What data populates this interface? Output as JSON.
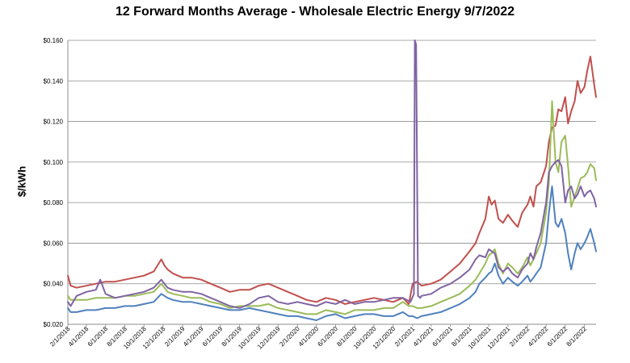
{
  "chart_data": {
    "type": "line",
    "title": "12 Forward Months Average - Wholesale Electric Energy 9/7/2022",
    "xlabel": "",
    "ylabel": "$/kWh",
    "ylim": [
      0.02,
      0.16
    ],
    "yticks": [
      "$0.020",
      "$0.040",
      "$0.060",
      "$0.080",
      "$0.100",
      "$0.120",
      "$0.140",
      "$0.160"
    ],
    "xlim": [
      "2018-02-01",
      "2022-09-07"
    ],
    "xticks": [
      "2/1/2018",
      "4/1/2018",
      "6/1/2018",
      "8/1/2018",
      "10/1/2018",
      "12/1/2018",
      "2/1/2019",
      "4/1/2019",
      "6/1/2019",
      "8/1/2019",
      "10/1/2019",
      "12/1/2019",
      "2/1/2020",
      "4/1/2020",
      "6/1/2020",
      "8/1/2020",
      "10/1/2020",
      "12/1/2020",
      "2/1/2021",
      "4/1/2021",
      "6/1/2021",
      "8/1/2021",
      "10/1/2021",
      "12/1/2021",
      "2/1/2022",
      "4/1/2022",
      "6/1/2022",
      "8/1/2022"
    ],
    "grid": "horizontal",
    "legend": "none",
    "series": [
      {
        "color": "#c0504d",
        "x": [
          "2018-02-01",
          "2018-02-10",
          "2018-03-01",
          "2018-04-01",
          "2018-05-01",
          "2018-06-01",
          "2018-07-01",
          "2018-08-01",
          "2018-09-01",
          "2018-10-01",
          "2018-11-01",
          "2018-11-25",
          "2018-12-05",
          "2018-12-15",
          "2019-01-01",
          "2019-02-01",
          "2019-03-01",
          "2019-04-01",
          "2019-05-01",
          "2019-06-01",
          "2019-07-01",
          "2019-08-01",
          "2019-09-01",
          "2019-10-01",
          "2019-11-01",
          "2019-12-01",
          "2020-01-01",
          "2020-02-01",
          "2020-03-01",
          "2020-04-01",
          "2020-05-01",
          "2020-06-01",
          "2020-07-01",
          "2020-08-01",
          "2020-09-01",
          "2020-10-01",
          "2020-11-01",
          "2020-12-01",
          "2021-01-01",
          "2021-01-20",
          "2021-02-01",
          "2021-02-15",
          "2021-03-01",
          "2021-04-01",
          "2021-05-01",
          "2021-06-01",
          "2021-07-01",
          "2021-08-01",
          "2021-08-20",
          "2021-09-01",
          "2021-09-20",
          "2021-10-01",
          "2021-10-10",
          "2021-10-20",
          "2021-11-01",
          "2021-11-15",
          "2021-12-01",
          "2021-12-15",
          "2022-01-01",
          "2022-01-15",
          "2022-02-01",
          "2022-02-10",
          "2022-02-20",
          "2022-03-01",
          "2022-03-15",
          "2022-04-01",
          "2022-04-10",
          "2022-04-20",
          "2022-05-01",
          "2022-05-10",
          "2022-05-20",
          "2022-06-01",
          "2022-06-10",
          "2022-06-20",
          "2022-07-01",
          "2022-07-10",
          "2022-07-20",
          "2022-08-01",
          "2022-08-10",
          "2022-08-20",
          "2022-09-01",
          "2022-09-07"
        ],
        "values": [
          0.044,
          0.039,
          0.038,
          0.039,
          0.04,
          0.041,
          0.041,
          0.042,
          0.043,
          0.044,
          0.046,
          0.052,
          0.049,
          0.047,
          0.045,
          0.043,
          0.043,
          0.042,
          0.04,
          0.038,
          0.036,
          0.037,
          0.037,
          0.039,
          0.04,
          0.038,
          0.036,
          0.034,
          0.032,
          0.031,
          0.033,
          0.032,
          0.03,
          0.031,
          0.032,
          0.033,
          0.032,
          0.031,
          0.033,
          0.03,
          0.04,
          0.041,
          0.039,
          0.04,
          0.042,
          0.046,
          0.05,
          0.056,
          0.06,
          0.065,
          0.072,
          0.083,
          0.079,
          0.081,
          0.072,
          0.07,
          0.074,
          0.071,
          0.068,
          0.075,
          0.079,
          0.083,
          0.078,
          0.088,
          0.09,
          0.098,
          0.11,
          0.117,
          0.118,
          0.126,
          0.125,
          0.132,
          0.119,
          0.125,
          0.13,
          0.14,
          0.134,
          0.137,
          0.145,
          0.152,
          0.138,
          0.132
        ]
      },
      {
        "color": "#9bbb59",
        "x": [
          "2018-02-01",
          "2018-02-10",
          "2018-03-01",
          "2018-04-01",
          "2018-05-01",
          "2018-06-01",
          "2018-07-01",
          "2018-08-01",
          "2018-09-01",
          "2018-10-01",
          "2018-11-01",
          "2018-11-25",
          "2018-12-05",
          "2018-12-15",
          "2019-01-01",
          "2019-02-01",
          "2019-03-01",
          "2019-04-01",
          "2019-05-01",
          "2019-06-01",
          "2019-07-01",
          "2019-08-01",
          "2019-09-01",
          "2019-10-01",
          "2019-11-01",
          "2019-12-01",
          "2020-01-01",
          "2020-02-01",
          "2020-03-01",
          "2020-04-01",
          "2020-05-01",
          "2020-06-01",
          "2020-07-01",
          "2020-08-01",
          "2020-09-01",
          "2020-10-01",
          "2020-11-01",
          "2020-12-01",
          "2021-01-01",
          "2021-01-20",
          "2021-02-01",
          "2021-02-15",
          "2021-03-01",
          "2021-04-01",
          "2021-05-01",
          "2021-06-01",
          "2021-07-01",
          "2021-08-01",
          "2021-08-20",
          "2021-09-01",
          "2021-09-20",
          "2021-10-01",
          "2021-10-10",
          "2021-10-20",
          "2021-11-01",
          "2021-11-15",
          "2021-12-01",
          "2021-12-15",
          "2022-01-01",
          "2022-01-15",
          "2022-02-01",
          "2022-02-10",
          "2022-02-20",
          "2022-03-01",
          "2022-03-15",
          "2022-04-01",
          "2022-04-10",
          "2022-04-20",
          "2022-05-01",
          "2022-05-10",
          "2022-05-20",
          "2022-06-01",
          "2022-06-10",
          "2022-06-20",
          "2022-07-01",
          "2022-07-10",
          "2022-07-20",
          "2022-08-01",
          "2022-08-10",
          "2022-08-20",
          "2022-09-01",
          "2022-09-07"
        ],
        "values": [
          0.034,
          0.032,
          0.032,
          0.032,
          0.033,
          0.033,
          0.033,
          0.034,
          0.034,
          0.035,
          0.036,
          0.04,
          0.038,
          0.036,
          0.035,
          0.034,
          0.033,
          0.033,
          0.031,
          0.03,
          0.028,
          0.029,
          0.029,
          0.029,
          0.03,
          0.028,
          0.027,
          0.026,
          0.025,
          0.025,
          0.027,
          0.026,
          0.025,
          0.027,
          0.027,
          0.027,
          0.028,
          0.028,
          0.031,
          0.029,
          0.029,
          0.028,
          0.028,
          0.029,
          0.031,
          0.033,
          0.035,
          0.039,
          0.042,
          0.045,
          0.05,
          0.054,
          0.055,
          0.057,
          0.05,
          0.045,
          0.05,
          0.048,
          0.045,
          0.048,
          0.053,
          0.049,
          0.052,
          0.055,
          0.06,
          0.075,
          0.09,
          0.13,
          0.1,
          0.095,
          0.11,
          0.113,
          0.098,
          0.078,
          0.083,
          0.087,
          0.092,
          0.093,
          0.095,
          0.099,
          0.097,
          0.091
        ]
      },
      {
        "color": "#8064a2",
        "x": [
          "2018-02-01",
          "2018-02-10",
          "2018-03-01",
          "2018-04-01",
          "2018-05-01",
          "2018-05-15",
          "2018-06-01",
          "2018-07-01",
          "2018-08-01",
          "2018-09-01",
          "2018-10-01",
          "2018-11-01",
          "2018-11-25",
          "2018-12-05",
          "2018-12-15",
          "2019-01-01",
          "2019-02-01",
          "2019-03-01",
          "2019-04-01",
          "2019-05-01",
          "2019-06-01",
          "2019-07-01",
          "2019-08-01",
          "2019-09-01",
          "2019-10-01",
          "2019-11-01",
          "2019-12-01",
          "2020-01-01",
          "2020-02-01",
          "2020-03-01",
          "2020-04-01",
          "2020-05-01",
          "2020-06-01",
          "2020-07-01",
          "2020-08-01",
          "2020-09-01",
          "2020-10-01",
          "2020-11-01",
          "2020-12-01",
          "2021-01-01",
          "2021-01-25",
          "2021-02-05",
          "2021-02-08",
          "2021-02-12",
          "2021-02-18",
          "2021-02-25",
          "2021-03-01",
          "2021-04-01",
          "2021-05-01",
          "2021-06-01",
          "2021-07-01",
          "2021-08-01",
          "2021-08-20",
          "2021-09-01",
          "2021-09-20",
          "2021-10-01",
          "2021-10-10",
          "2021-10-20",
          "2021-11-01",
          "2021-11-15",
          "2021-12-01",
          "2021-12-15",
          "2022-01-01",
          "2022-01-15",
          "2022-02-01",
          "2022-02-10",
          "2022-02-20",
          "2022-03-01",
          "2022-03-15",
          "2022-04-01",
          "2022-04-10",
          "2022-04-20",
          "2022-05-01",
          "2022-05-10",
          "2022-05-20",
          "2022-06-01",
          "2022-06-10",
          "2022-06-20",
          "2022-07-01",
          "2022-07-10",
          "2022-07-20",
          "2022-08-01",
          "2022-08-10",
          "2022-08-20",
          "2022-09-01",
          "2022-09-07"
        ],
        "values": [
          0.031,
          0.029,
          0.034,
          0.036,
          0.037,
          0.042,
          0.035,
          0.033,
          0.034,
          0.035,
          0.036,
          0.038,
          0.042,
          0.04,
          0.038,
          0.037,
          0.036,
          0.036,
          0.035,
          0.033,
          0.031,
          0.029,
          0.028,
          0.03,
          0.033,
          0.034,
          0.031,
          0.03,
          0.031,
          0.03,
          0.029,
          0.031,
          0.03,
          0.032,
          0.03,
          0.031,
          0.031,
          0.032,
          0.033,
          0.033,
          0.031,
          0.035,
          0.16,
          0.158,
          0.034,
          0.033,
          0.034,
          0.035,
          0.038,
          0.04,
          0.043,
          0.047,
          0.052,
          0.054,
          0.053,
          0.057,
          0.056,
          0.055,
          0.048,
          0.046,
          0.048,
          0.045,
          0.043,
          0.047,
          0.05,
          0.055,
          0.052,
          0.058,
          0.065,
          0.08,
          0.095,
          0.098,
          0.1,
          0.101,
          0.098,
          0.08,
          0.086,
          0.088,
          0.082,
          0.084,
          0.088,
          0.083,
          0.085,
          0.086,
          0.082,
          0.078
        ]
      },
      {
        "color": "#4f81bd",
        "x": [
          "2018-02-01",
          "2018-02-10",
          "2018-03-01",
          "2018-04-01",
          "2018-05-01",
          "2018-06-01",
          "2018-07-01",
          "2018-08-01",
          "2018-09-01",
          "2018-10-01",
          "2018-11-01",
          "2018-11-25",
          "2018-12-05",
          "2018-12-15",
          "2019-01-01",
          "2019-02-01",
          "2019-03-01",
          "2019-04-01",
          "2019-05-01",
          "2019-06-01",
          "2019-07-01",
          "2019-08-01",
          "2019-09-01",
          "2019-10-01",
          "2019-11-01",
          "2019-12-01",
          "2020-01-01",
          "2020-02-01",
          "2020-03-01",
          "2020-04-01",
          "2020-05-01",
          "2020-06-01",
          "2020-07-01",
          "2020-08-01",
          "2020-09-01",
          "2020-10-01",
          "2020-11-01",
          "2020-12-01",
          "2021-01-01",
          "2021-01-20",
          "2021-02-01",
          "2021-02-15",
          "2021-03-01",
          "2021-04-01",
          "2021-05-01",
          "2021-06-01",
          "2021-07-01",
          "2021-08-01",
          "2021-08-20",
          "2021-09-01",
          "2021-09-20",
          "2021-10-01",
          "2021-10-10",
          "2021-10-20",
          "2021-11-01",
          "2021-11-15",
          "2021-12-01",
          "2021-12-15",
          "2022-01-01",
          "2022-01-15",
          "2022-02-01",
          "2022-02-10",
          "2022-02-20",
          "2022-03-01",
          "2022-03-15",
          "2022-04-01",
          "2022-04-10",
          "2022-04-20",
          "2022-05-01",
          "2022-05-10",
          "2022-05-20",
          "2022-06-01",
          "2022-06-10",
          "2022-06-20",
          "2022-07-01",
          "2022-07-10",
          "2022-07-20",
          "2022-08-01",
          "2022-08-10",
          "2022-08-20",
          "2022-09-01",
          "2022-09-07"
        ],
        "values": [
          0.028,
          0.026,
          0.026,
          0.027,
          0.027,
          0.028,
          0.028,
          0.029,
          0.029,
          0.03,
          0.031,
          0.035,
          0.034,
          0.033,
          0.032,
          0.031,
          0.031,
          0.03,
          0.029,
          0.028,
          0.027,
          0.027,
          0.028,
          0.027,
          0.026,
          0.025,
          0.024,
          0.024,
          0.023,
          0.022,
          0.024,
          0.025,
          0.023,
          0.024,
          0.025,
          0.025,
          0.024,
          0.024,
          0.026,
          0.024,
          0.024,
          0.023,
          0.024,
          0.025,
          0.026,
          0.028,
          0.03,
          0.033,
          0.036,
          0.04,
          0.043,
          0.045,
          0.046,
          0.05,
          0.044,
          0.04,
          0.043,
          0.041,
          0.039,
          0.041,
          0.044,
          0.041,
          0.043,
          0.045,
          0.048,
          0.06,
          0.075,
          0.088,
          0.07,
          0.068,
          0.072,
          0.065,
          0.055,
          0.047,
          0.055,
          0.06,
          0.057,
          0.06,
          0.063,
          0.067,
          0.06,
          0.056
        ]
      }
    ]
  }
}
